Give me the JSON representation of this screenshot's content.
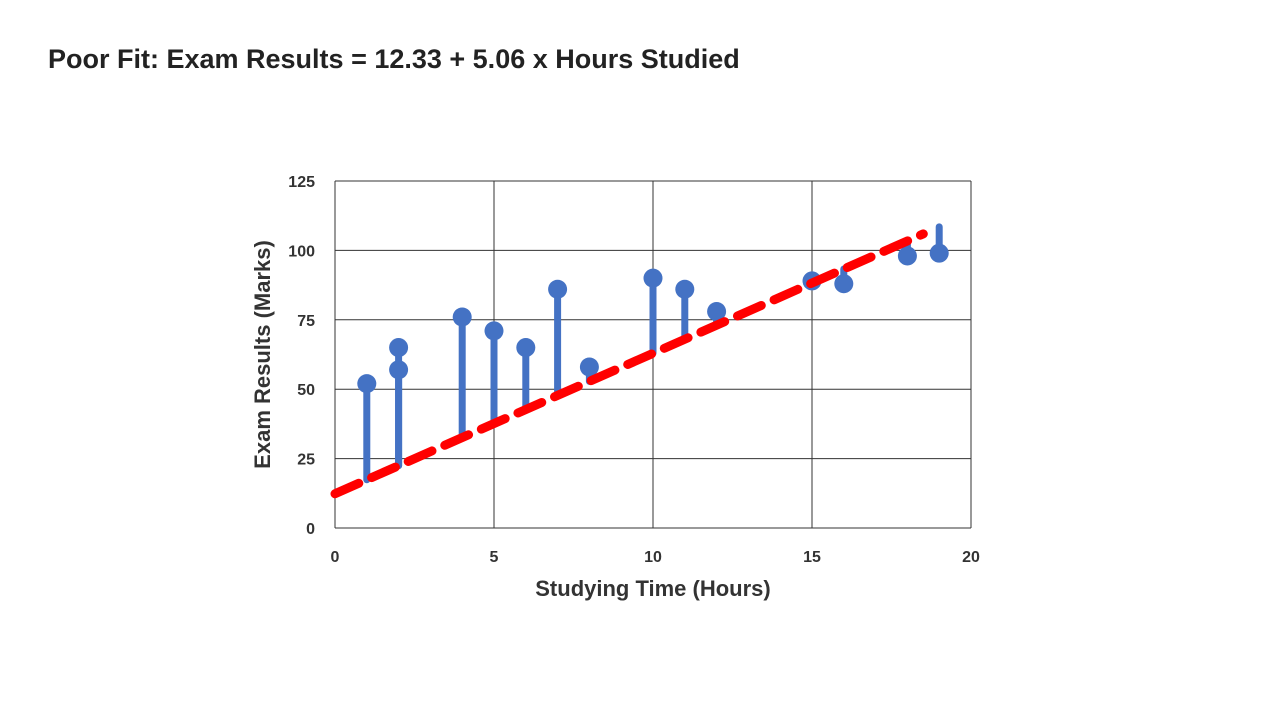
{
  "slide": {
    "title": "Poor Fit: Exam Results = 12.33 + 5.06 x Hours Studied"
  },
  "chart_data": {
    "type": "scatter",
    "xlabel": "Studying Time (Hours)",
    "ylabel": "Exam Results (Marks)",
    "xlim": [
      0,
      20
    ],
    "ylim": [
      0,
      125
    ],
    "xticks": [
      0,
      5,
      10,
      15,
      20
    ],
    "yticks": [
      0,
      25,
      50,
      75,
      100,
      125
    ],
    "grid": true,
    "points": [
      {
        "x": 1,
        "y": 52
      },
      {
        "x": 2,
        "y": 65
      },
      {
        "x": 2,
        "y": 57
      },
      {
        "x": 4,
        "y": 76
      },
      {
        "x": 5,
        "y": 71
      },
      {
        "x": 6,
        "y": 65
      },
      {
        "x": 7,
        "y": 86
      },
      {
        "x": 8,
        "y": 58
      },
      {
        "x": 10,
        "y": 90
      },
      {
        "x": 11,
        "y": 86
      },
      {
        "x": 12,
        "y": 78
      },
      {
        "x": 15,
        "y": 89
      },
      {
        "x": 16,
        "y": 88
      },
      {
        "x": 18,
        "y": 98
      },
      {
        "x": 19,
        "y": 99
      }
    ],
    "fit_line": {
      "intercept": 12.33,
      "slope": 5.06,
      "x_range": [
        0,
        18.5
      ],
      "style": "dashed"
    },
    "colors": {
      "points": "#4472C4",
      "residuals": "#4472C4",
      "fit_line": "#FF0000",
      "grid": "#333333",
      "text": "#333333"
    }
  }
}
